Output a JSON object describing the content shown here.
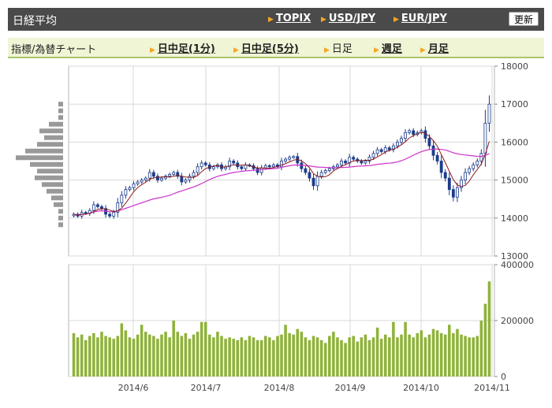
{
  "header": {
    "title": "日経平均",
    "links": [
      "TOPIX",
      "USD/JPY",
      "EUR/JPY"
    ],
    "refresh_label": "更新"
  },
  "tabs": {
    "label": "指標/為替チャート",
    "items": [
      {
        "label": "日中足(1分)",
        "active": false
      },
      {
        "label": "日中足(5分)",
        "active": false
      },
      {
        "label": "日足",
        "active": true
      },
      {
        "label": "週足",
        "active": false
      },
      {
        "label": "月足",
        "active": false
      }
    ]
  },
  "colors": {
    "candle": "#1c3c8a",
    "ma_short": "#8b1a1a",
    "ma_long": "#cc33cc",
    "volume": "#8fb23a",
    "profile": "#999999"
  },
  "chart_data": [
    {
      "type": "candlestick",
      "ylim": [
        13000,
        18000
      ],
      "y_ticks": [
        "18000",
        "17000",
        "16000",
        "15000",
        "14000",
        "13000"
      ],
      "x_ticks": [
        "2014/6",
        "2014/7",
        "2014/8",
        "2014/9",
        "2014/10",
        "2014/11"
      ],
      "closes": [
        14100,
        14050,
        14150,
        14120,
        14200,
        14350,
        14300,
        14250,
        14100,
        14050,
        14150,
        14400,
        14600,
        14750,
        14800,
        14900,
        14950,
        15000,
        15050,
        15200,
        15100,
        15000,
        15050,
        15100,
        15150,
        15200,
        15100,
        14950,
        15000,
        15100,
        15200,
        15350,
        15450,
        15400,
        15300,
        15350,
        15400,
        15300,
        15350,
        15500,
        15450,
        15350,
        15300,
        15400,
        15380,
        15300,
        15200,
        15320,
        15380,
        15350,
        15400,
        15350,
        15500,
        15550,
        15600,
        15620,
        15450,
        15300,
        15200,
        15050,
        14850,
        15100,
        15200,
        15250,
        15300,
        15350,
        15400,
        15500,
        15450,
        15600,
        15550,
        15500,
        15450,
        15500,
        15600,
        15700,
        15800,
        15750,
        15850,
        15800,
        15900,
        16000,
        16100,
        16250,
        16300,
        16200,
        16250,
        16300,
        16100,
        15900,
        15650,
        15500,
        15200,
        15050,
        14750,
        14550,
        14800,
        15000,
        15200,
        15300,
        15400,
        15500,
        15700,
        16500,
        17000
      ],
      "volume_ylim": [
        0,
        400000
      ],
      "volume_ticks": [
        "400000",
        "200000",
        "0"
      ],
      "volumes": [
        155000,
        140000,
        150000,
        130000,
        145000,
        155000,
        140000,
        160000,
        145000,
        140000,
        135000,
        145000,
        190000,
        165000,
        140000,
        135000,
        150000,
        185000,
        160000,
        150000,
        145000,
        135000,
        150000,
        160000,
        140000,
        200000,
        160000,
        145000,
        155000,
        135000,
        150000,
        160000,
        195000,
        195000,
        150000,
        140000,
        160000,
        145000,
        135000,
        140000,
        135000,
        130000,
        140000,
        130000,
        145000,
        140000,
        130000,
        130000,
        145000,
        140000,
        130000,
        145000,
        150000,
        185000,
        155000,
        150000,
        170000,
        160000,
        140000,
        130000,
        145000,
        140000,
        130000,
        120000,
        145000,
        160000,
        140000,
        130000,
        120000,
        140000,
        145000,
        125000,
        140000,
        150000,
        130000,
        140000,
        175000,
        135000,
        150000,
        140000,
        195000,
        140000,
        150000,
        195000,
        150000,
        140000,
        155000,
        165000,
        140000,
        150000,
        170000,
        165000,
        155000,
        150000,
        185000,
        155000,
        170000,
        150000,
        145000,
        140000,
        140000,
        145000,
        200000,
        260000,
        340000
      ],
      "volume_profile": [
        0.1,
        0.1,
        0.1,
        0.3,
        0.5,
        0.4,
        0.55,
        0.8,
        1.0,
        0.7,
        0.55,
        0.6,
        0.45,
        0.35,
        0.25,
        0.2,
        0.1,
        0.1,
        0.1
      ]
    }
  ]
}
